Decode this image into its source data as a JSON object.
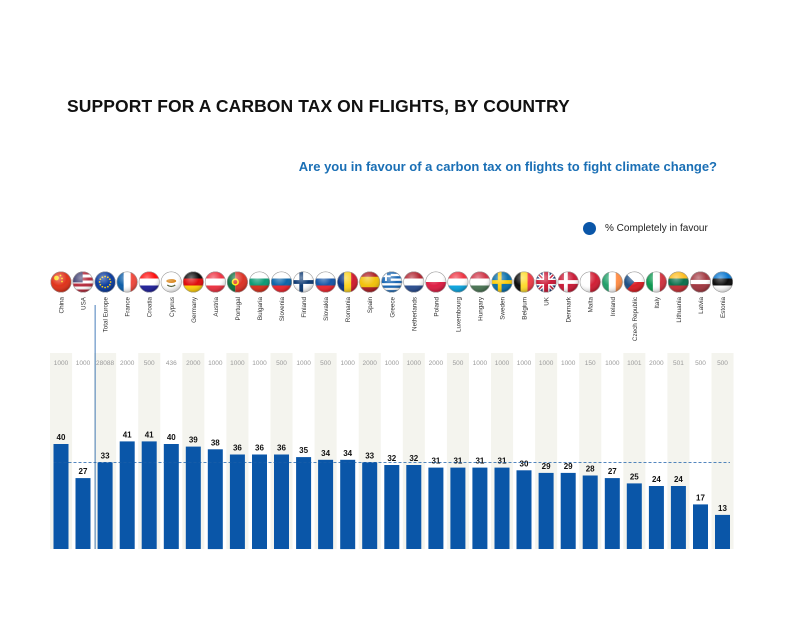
{
  "title": "SUPPORT FOR A CARBON TAX ON FLIGHTS, BY COUNTRY",
  "subtitle": "Are you in favour of a carbon tax on flights to fight climate change?",
  "colors": {
    "bar": "#0a56a8",
    "title": "#111111",
    "subtitle": "#1a6fb5",
    "reference_line": "#1a5ea8",
    "column_stripe": "#f4f4ee"
  },
  "chart_data": {
    "type": "bar",
    "title": "SUPPORT FOR A CARBON TAX ON FLIGHTS, BY COUNTRY",
    "subtitle": "Are you in favour of a carbon tax on flights to fight climate change?",
    "categories": [
      "China",
      "USA",
      "Total Europe",
      "France",
      "Croatia",
      "Cyprus",
      "Germany",
      "Austria",
      "Portugal",
      "Bulgaria",
      "Slovenia",
      "Finland",
      "Slovakia",
      "Romania",
      "Spain",
      "Greece",
      "Netherlands",
      "Poland",
      "Luxembourg",
      "Hungary",
      "Sweden",
      "Belgium",
      "UK",
      "Denmark",
      "Malta",
      "Ireland",
      "Czech Republic",
      "Italy",
      "Lithuania",
      "Latvia",
      "Estonia"
    ],
    "series": [
      {
        "name": "% Completely in favour",
        "values": [
          40,
          27,
          33,
          41,
          41,
          40,
          39,
          38,
          36,
          36,
          36,
          35,
          34,
          34,
          33,
          32,
          32,
          31,
          31,
          31,
          31,
          30,
          29,
          29,
          28,
          27,
          25,
          24,
          24,
          17,
          13
        ]
      }
    ],
    "sample_sizes": [
      "1000",
      "1000",
      "28088",
      "2000",
      "500",
      "436",
      "2000",
      "1000",
      "1000",
      "1000",
      "500",
      "1000",
      "500",
      "1000",
      "2000",
      "1000",
      "1000",
      "2000",
      "500",
      "1000",
      "1000",
      "1000",
      "1000",
      "1000",
      "150",
      "1000",
      "1001",
      "2000",
      "501",
      "500",
      "500"
    ],
    "reference_value": 33,
    "reference_category": "Total Europe",
    "ylim": [
      0,
      58
    ],
    "legend": "top-right",
    "grid": false
  },
  "flags": {
    "China": [
      [
        "#de2910"
      ],
      "star"
    ],
    "USA": [
      [
        "#b22234",
        "#ffffff",
        "#b22234",
        "#ffffff",
        "#b22234",
        "#ffffff",
        "#b22234"
      ],
      "usa"
    ],
    "Total Europe": [
      [
        "#003399"
      ],
      "eu"
    ],
    "France": [
      [
        "#0055a4",
        "#ffffff",
        "#ef4135"
      ],
      "v"
    ],
    "Croatia": [
      [
        "#ff0000",
        "#ffffff",
        "#171796"
      ],
      "h"
    ],
    "Cyprus": [
      [
        "#ffffff"
      ],
      "cyprus"
    ],
    "Germany": [
      [
        "#000000",
        "#dd0000",
        "#ffce00"
      ],
      "h"
    ],
    "Austria": [
      [
        "#ed2939",
        "#ffffff",
        "#ed2939"
      ],
      "h"
    ],
    "Portugal": [
      [
        "#046a38",
        "#da291c"
      ],
      "pt"
    ],
    "Bulgaria": [
      [
        "#ffffff",
        "#00966e",
        "#d62612"
      ],
      "h"
    ],
    "Slovenia": [
      [
        "#ffffff",
        "#005da4",
        "#ed1c24"
      ],
      "h"
    ],
    "Finland": [
      [
        "#ffffff"
      ],
      "nordic:#002f6c"
    ],
    "Slovakia": [
      [
        "#ffffff",
        "#0b4ea2",
        "#ee1c25"
      ],
      "h"
    ],
    "Romania": [
      [
        "#002b7f",
        "#fcd116",
        "#ce1126"
      ],
      "v"
    ],
    "Spain": [
      [
        "#aa151b",
        "#f1bf00",
        "#f1bf00",
        "#aa151b"
      ],
      "h"
    ],
    "Greece": [
      [
        "#0d5eaf",
        "#ffffff",
        "#0d5eaf",
        "#ffffff",
        "#0d5eaf",
        "#ffffff",
        "#0d5eaf",
        "#ffffff",
        "#0d5eaf"
      ],
      "greece"
    ],
    "Netherlands": [
      [
        "#ae1c28",
        "#ffffff",
        "#21468b"
      ],
      "h"
    ],
    "Poland": [
      [
        "#ffffff",
        "#dc143c"
      ],
      "h"
    ],
    "Luxembourg": [
      [
        "#ed2939",
        "#ffffff",
        "#00a1de"
      ],
      "h"
    ],
    "Hungary": [
      [
        "#cd2a3e",
        "#ffffff",
        "#436f4d"
      ],
      "h"
    ],
    "Sweden": [
      [
        "#006aa7"
      ],
      "nordic:#fecc00"
    ],
    "Belgium": [
      [
        "#000000",
        "#fdda24",
        "#ef3340"
      ],
      "v"
    ],
    "UK": [
      [
        "#012169"
      ],
      "uk"
    ],
    "Denmark": [
      [
        "#c8102e"
      ],
      "nordic:#ffffff"
    ],
    "Malta": [
      [
        "#ffffff",
        "#cf142b"
      ],
      "v"
    ],
    "Ireland": [
      [
        "#169b62",
        "#ffffff",
        "#ff883e"
      ],
      "v"
    ],
    "Czech Republic": [
      [
        "#ffffff",
        "#d7141a"
      ],
      "cz"
    ],
    "Italy": [
      [
        "#009246",
        "#ffffff",
        "#ce2b37"
      ],
      "v"
    ],
    "Lithuania": [
      [
        "#fdb913",
        "#006a44",
        "#c1272d"
      ],
      "h"
    ],
    "Latvia": [
      [
        "#9e3039",
        "#9e3039",
        "#ffffff",
        "#9e3039",
        "#9e3039"
      ],
      "h"
    ],
    "Estonia": [
      [
        "#0072ce",
        "#000000",
        "#ffffff"
      ],
      "h"
    ]
  }
}
